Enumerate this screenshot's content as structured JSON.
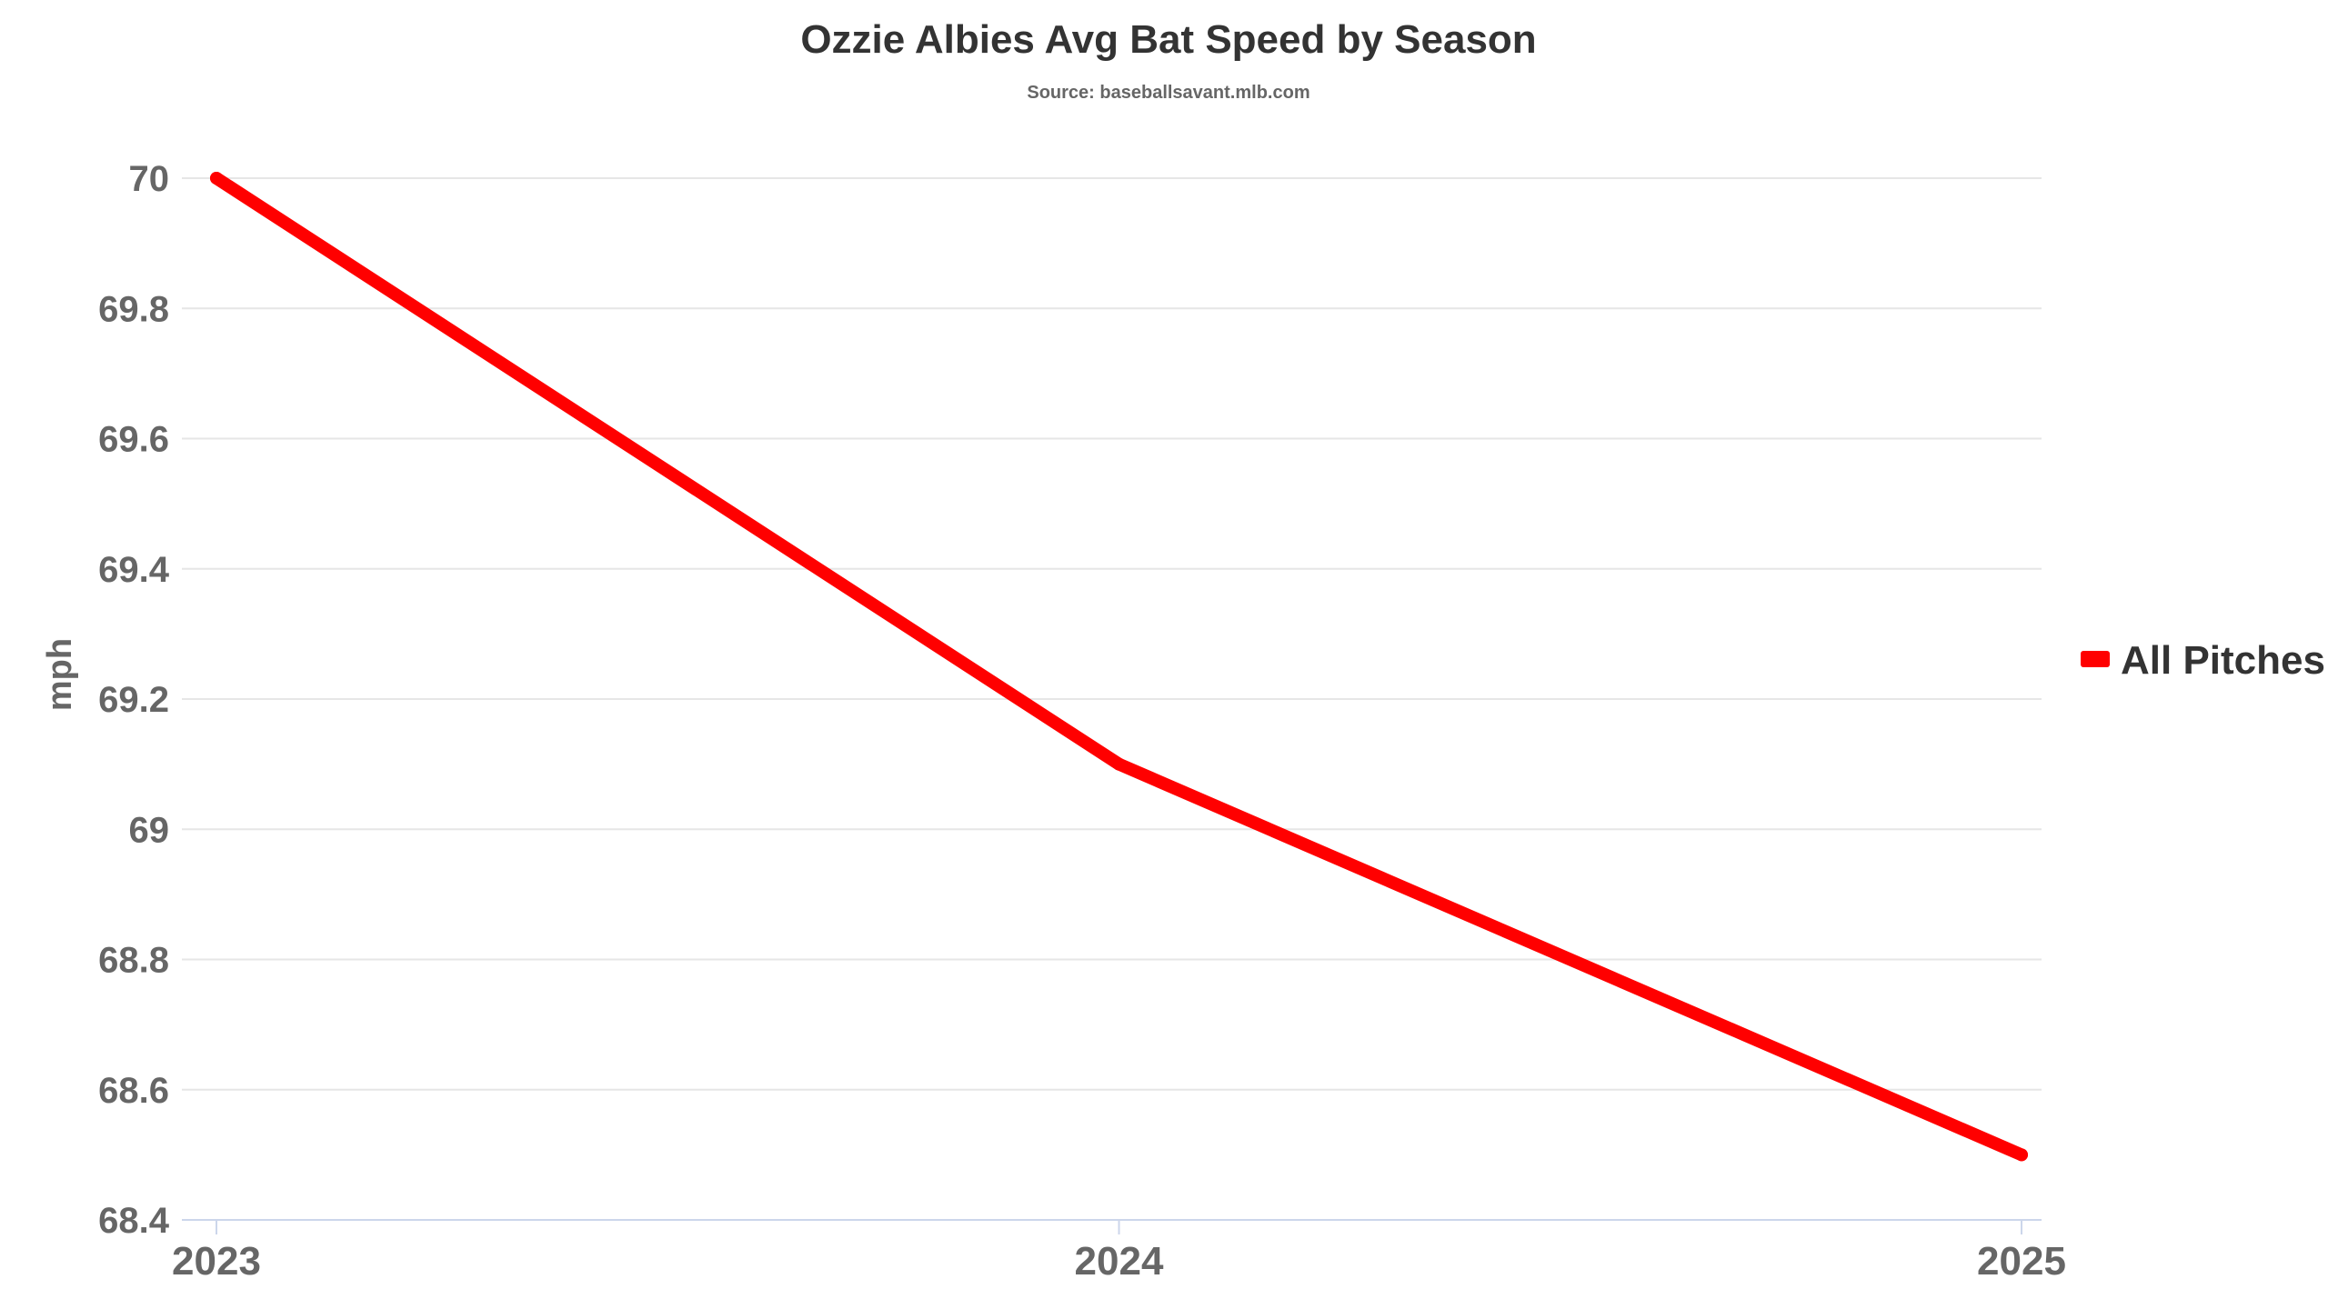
{
  "chart_data": {
    "type": "line",
    "title": "Ozzie Albies Avg Bat Speed by Season",
    "subtitle": "Source: baseballsavant.mlb.com",
    "xlabel": "",
    "ylabel": "mph",
    "categories": [
      "2023",
      "2024",
      "2025"
    ],
    "series": [
      {
        "name": "All Pitches",
        "values": [
          70.0,
          69.1,
          68.5
        ],
        "color": "#ff0000"
      }
    ],
    "ylim": [
      68.4,
      70.0
    ],
    "yticks": [
      68.4,
      68.6,
      68.8,
      69,
      69.2,
      69.4,
      69.6,
      69.8,
      70
    ],
    "ytick_labels": [
      "68.4",
      "68.6",
      "68.8",
      "69",
      "69.2",
      "69.4",
      "69.6",
      "69.8",
      "70"
    ],
    "grid": true,
    "legend_position": "right"
  }
}
